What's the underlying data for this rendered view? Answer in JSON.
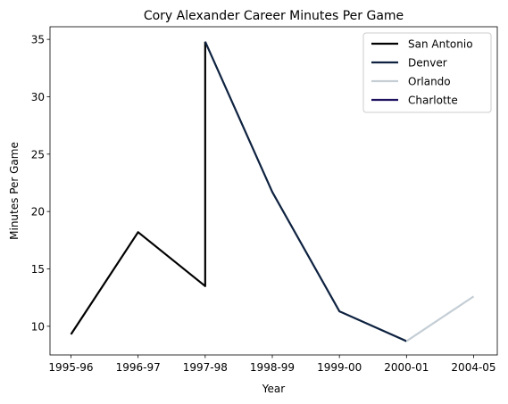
{
  "chart_data": {
    "type": "line",
    "title": "Cory Alexander Career Minutes Per Game",
    "xlabel": "Year",
    "ylabel": "Minutes Per Game",
    "categories": [
      "1995-96",
      "1996-97",
      "1997-98",
      "1998-99",
      "1999-00",
      "2000-01",
      "2004-05"
    ],
    "yticks": [
      10,
      15,
      20,
      25,
      30,
      35
    ],
    "ylim": [
      7.5,
      36.1
    ],
    "legend_position": "top-right",
    "grid": false,
    "series": [
      {
        "name": "San Antonio",
        "color": "#000000",
        "points": [
          [
            0,
            9.3
          ],
          [
            1,
            18.2
          ],
          [
            2,
            13.5
          ],
          [
            2,
            34.8
          ]
        ]
      },
      {
        "name": "Denver",
        "color": "#0E2240",
        "points": [
          [
            2,
            34.8
          ],
          [
            3,
            21.7
          ],
          [
            4,
            11.3
          ],
          [
            5,
            8.7
          ]
        ]
      },
      {
        "name": "Orlando",
        "color": "#C4CED4",
        "points": [
          [
            5,
            8.7
          ],
          [
            6,
            12.6
          ]
        ]
      },
      {
        "name": "Charlotte",
        "color": "#1D1160",
        "points": []
      }
    ]
  }
}
